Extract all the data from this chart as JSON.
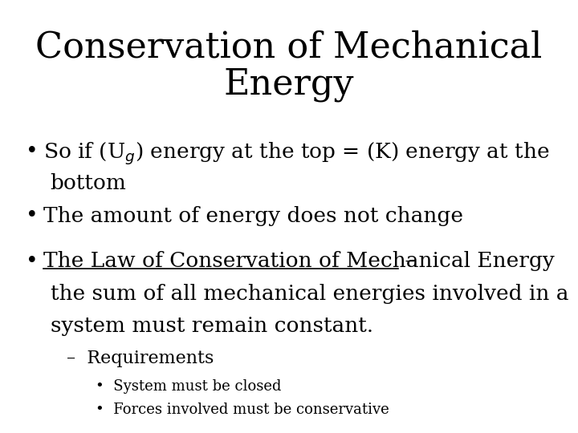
{
  "title_line1": "Conservation of Mechanical",
  "title_line2": "Energy",
  "background_color": "#ffffff",
  "text_color": "#000000",
  "title_fontsize": 32,
  "body_fontsize": 19,
  "sub_fontsize": 16,
  "subsub_fontsize": 13,
  "bullet2": "The amount of energy does not change",
  "bullet3_underline": "The Law of Conservation of Mechanical Energy",
  "dash1": "Requirements",
  "subbullet1": "System must be closed",
  "subbullet2": "Forces involved must be conservative"
}
